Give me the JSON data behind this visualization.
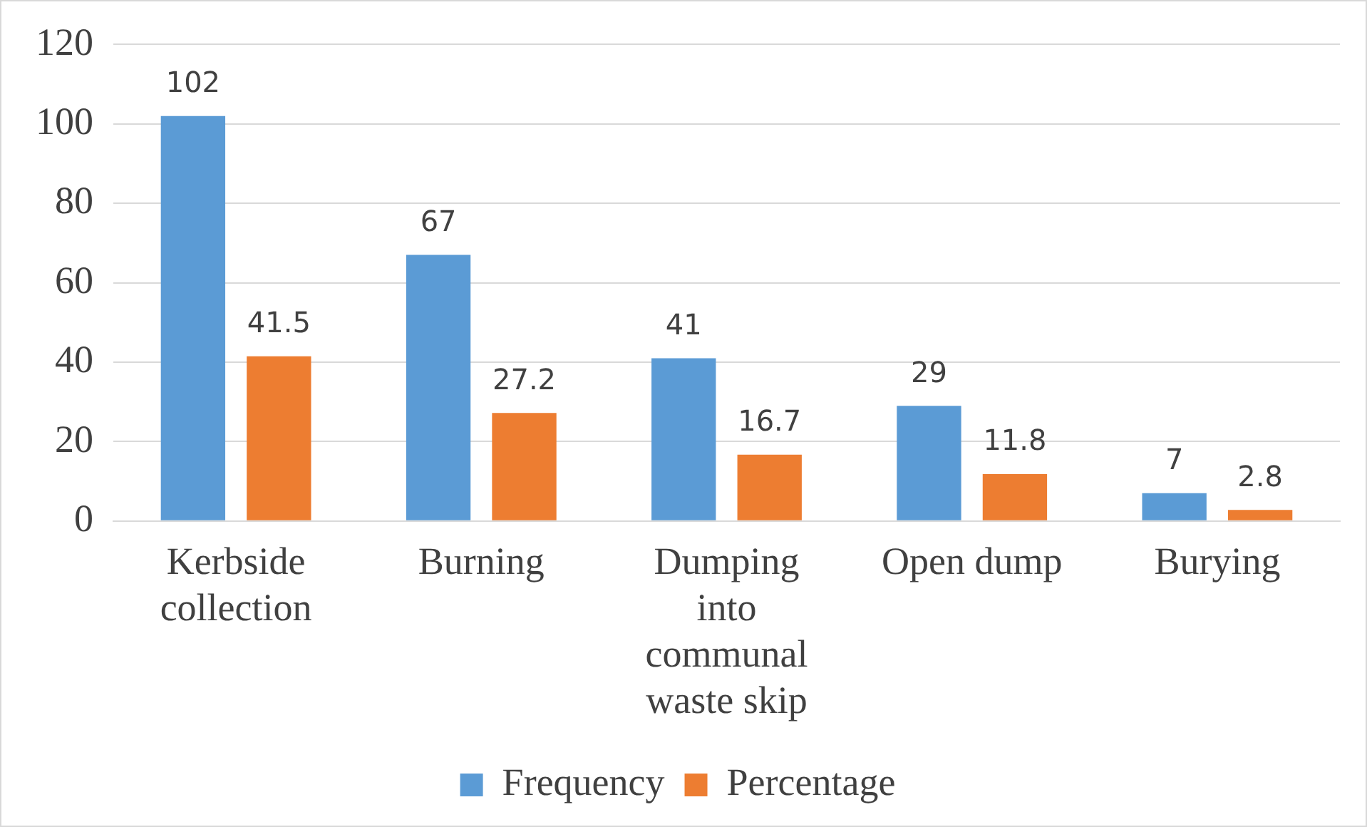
{
  "chart_data": {
    "type": "bar",
    "categories": [
      "Kerbside collection",
      "Burning",
      "Dumping into communal waste skip",
      "Open dump",
      "Burying"
    ],
    "series": [
      {
        "name": "Frequency",
        "color": "#5b9bd5",
        "values": [
          102,
          67,
          41,
          29,
          7
        ]
      },
      {
        "name": "Percentage",
        "color": "#ed7d31",
        "values": [
          41.5,
          27.2,
          16.7,
          11.8,
          2.8
        ]
      }
    ],
    "ylim": [
      0,
      120
    ],
    "yticks": [
      0,
      20,
      40,
      60,
      80,
      100,
      120
    ],
    "grid": "y",
    "legend": "bottom",
    "data_labels": true
  }
}
